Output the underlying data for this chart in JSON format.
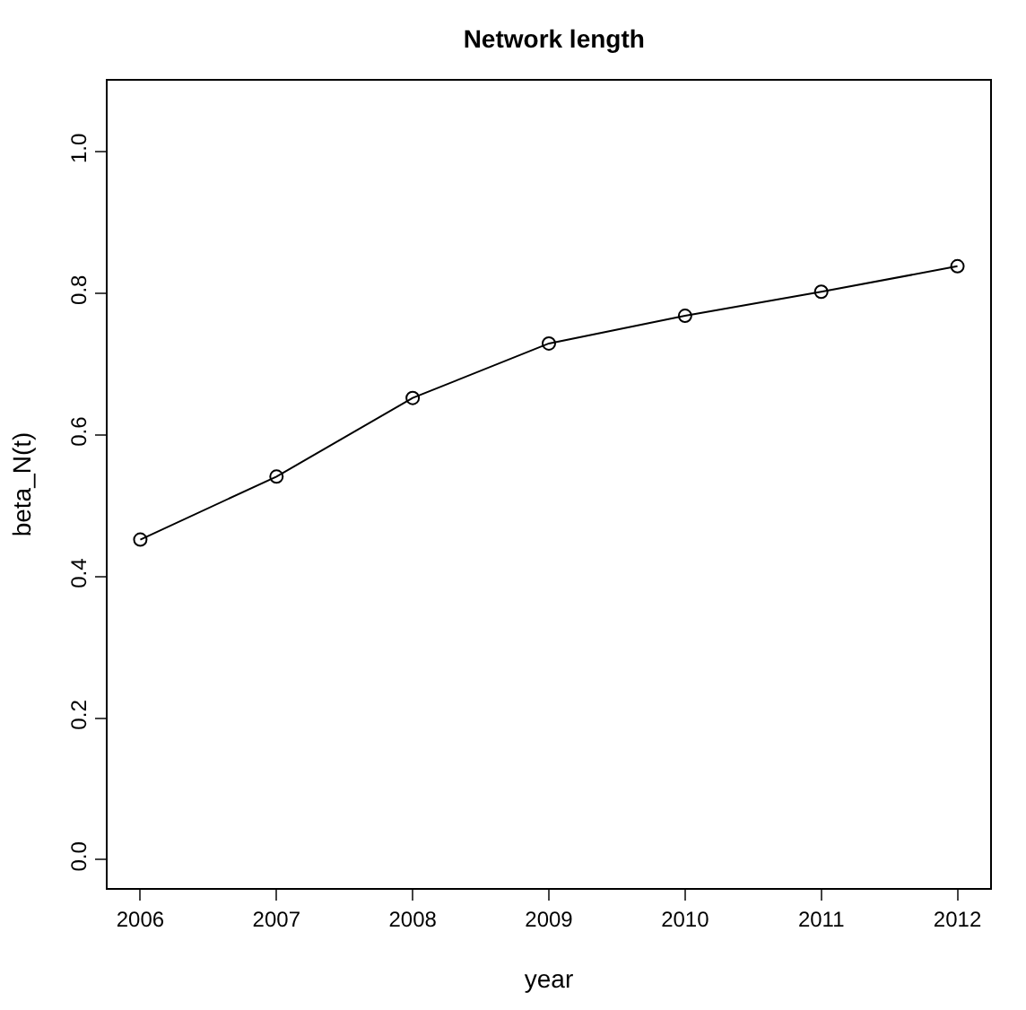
{
  "chart_data": {
    "type": "line",
    "title": "Network length",
    "xlabel": "year",
    "ylabel": "beta_N(t)",
    "x": [
      2006,
      2007,
      2008,
      2009,
      2010,
      2011,
      2012
    ],
    "series": [
      {
        "color": "#000000",
        "values": [
          0.452,
          0.541,
          0.652,
          0.729,
          0.768,
          0.802,
          0.838
        ]
      }
    ],
    "xlim": [
      2005.76,
      2012.24
    ],
    "xticks": [
      2006,
      2007,
      2008,
      2009,
      2010,
      2011,
      2012
    ],
    "ylim": [
      -0.04,
      1.1
    ],
    "yticks": [
      {
        "value": 0,
        "label": "0.0"
      },
      {
        "value": 0.2,
        "label": "0.2"
      },
      {
        "value": 0.4,
        "label": "0.4"
      },
      {
        "value": 0.6,
        "label": "0.6"
      },
      {
        "value": 0.8,
        "label": "0.8"
      },
      {
        "value": 1,
        "label": "1.0"
      }
    ],
    "grid": false,
    "marker": "circle",
    "line_style": "solid"
  }
}
